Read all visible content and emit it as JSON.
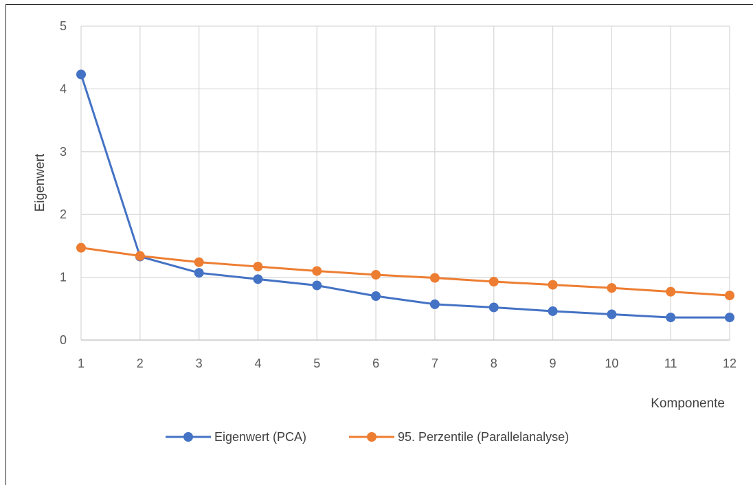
{
  "chart_data": {
    "type": "line",
    "title": "",
    "xlabel": "Komponente",
    "ylabel": "Eigenwert",
    "x": [
      1,
      2,
      3,
      4,
      5,
      6,
      7,
      8,
      9,
      10,
      11,
      12
    ],
    "xlim": [
      1,
      12
    ],
    "ylim": [
      0,
      5
    ],
    "yticks": [
      0,
      1,
      2,
      3,
      4,
      5
    ],
    "grid": true,
    "legend": "bottom",
    "series": [
      {
        "name": "Eigenwert (PCA)",
        "color": "#4472C4",
        "values": [
          4.23,
          1.33,
          1.07,
          0.97,
          0.87,
          0.7,
          0.57,
          0.52,
          0.46,
          0.41,
          0.36,
          0.36
        ]
      },
      {
        "name": "95. Perzentile (Parallelanalyse)",
        "color": "#ED7D31",
        "values": [
          1.47,
          1.34,
          1.24,
          1.17,
          1.1,
          1.04,
          0.99,
          0.93,
          0.88,
          0.83,
          0.77,
          0.71
        ]
      }
    ]
  }
}
